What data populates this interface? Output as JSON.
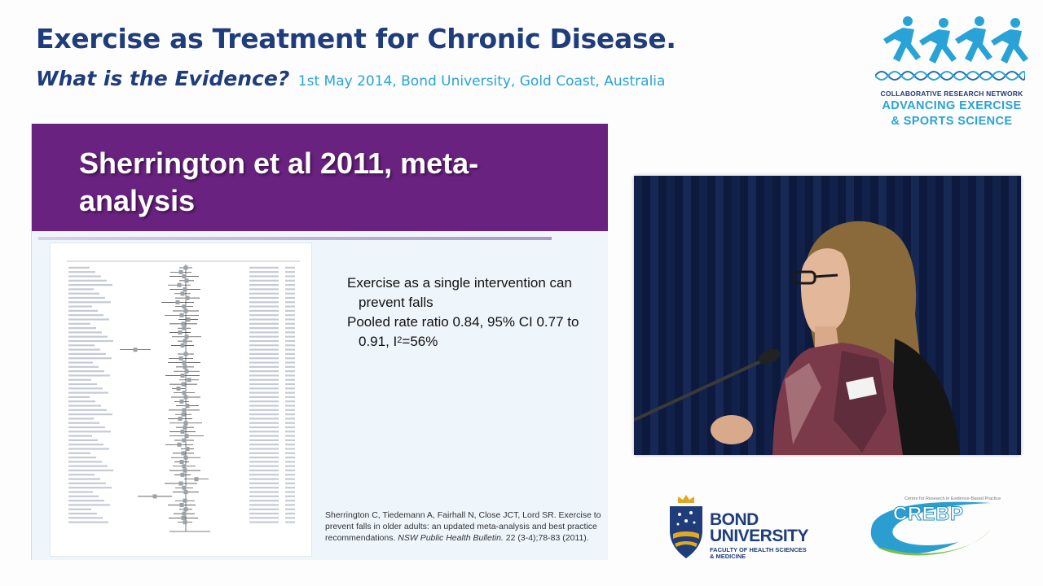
{
  "header": {
    "title": "Exercise as Treatment for Chronic Disease.",
    "question": "What is the Evidence?",
    "date_location": "1st May 2014, Bond University, Gold Coast, Australia"
  },
  "crn_logo": {
    "small_text": "COLLABORATIVE RESEARCH NETWORK",
    "line1": "ADVANCING EXERCISE",
    "line2": "& SPORTS SCIENCE"
  },
  "slide": {
    "title": "Sherrington et al 2011, meta-analysis",
    "bullet1": "Exercise as a single intervention can prevent falls",
    "bullet2_prefix": "Pooled rate ratio 0.84, 95% CI 0.77 to 0.91, I",
    "bullet2_sup": "2",
    "bullet2_suffix": "=56%",
    "citation_plain": "Sherrington C, Tiedemann A, Fairhall N, Close JCT, Lord SR. Exercise to prevent falls in older adults: an updated meta-analysis and best practice recommendations.",
    "citation_journal": "NSW Public Health Bulletin.",
    "citation_end": "22 (3-4);78-83 (2011)."
  },
  "bond_logo": {
    "line1": "BOND",
    "line2": "UNIVERSITY",
    "line3": "FACULTY OF HEALTH SCIENCES",
    "line4": "& MEDICINE"
  },
  "crebp_logo": {
    "small_text": "Centre for Research in Evidence-Based Practice",
    "word": "CREBP"
  },
  "colors": {
    "navy": "#1f3d7a",
    "cyan": "#29a3d6",
    "banner_purple": "#6a2280"
  }
}
